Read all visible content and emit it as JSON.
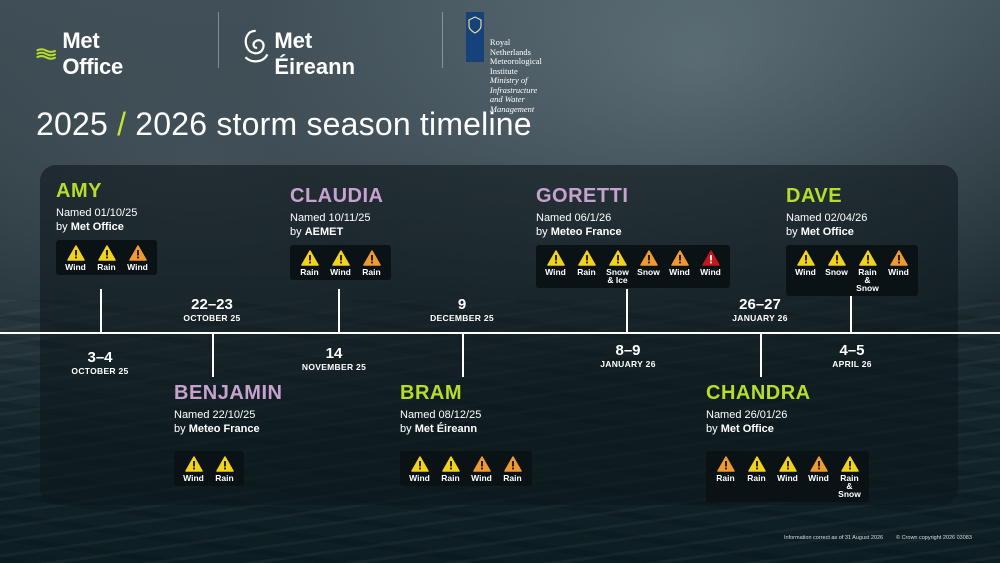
{
  "logos": {
    "met_office": "Met Office",
    "met_eireann": "Met Éireann",
    "knmi": [
      "Royal Netherlands",
      "Meteorological Institute",
      "Ministry of Infrastructure",
      "and Water Management"
    ]
  },
  "title": {
    "years_a": "2025",
    "slash": "/",
    "years_b": "2026 storm season timeline"
  },
  "colors": {
    "accent_green": "#b7dc2a",
    "accent_purple": "#c8a2cf",
    "yellow_warning": "#f2d21b",
    "amber_warning": "#ef9a2e",
    "red_warning": "#c4161c"
  },
  "storms": [
    {
      "name": "AMY",
      "named": "Named 01/10/25",
      "by_prefix": "by",
      "agency": "Met Office",
      "warnings": [
        {
          "level": "yellow",
          "label": "Wind"
        },
        {
          "level": "yellow",
          "label": "Rain"
        },
        {
          "level": "amber",
          "label": "Wind"
        }
      ],
      "date_big": "3–4",
      "date_small": "OCTOBER 25"
    },
    {
      "name": "BENJAMIN",
      "named": "Named 22/10/25",
      "by_prefix": "by",
      "agency": "Meteo France",
      "warnings": [
        {
          "level": "yellow",
          "label": "Wind"
        },
        {
          "level": "yellow",
          "label": "Rain"
        }
      ],
      "date_big": "22–23",
      "date_small": "OCTOBER 25"
    },
    {
      "name": "CLAUDIA",
      "named": "Named 10/11/25",
      "by_prefix": "by",
      "agency": "AEMET",
      "warnings": [
        {
          "level": "yellow",
          "label": "Rain"
        },
        {
          "level": "yellow",
          "label": "Wind"
        },
        {
          "level": "amber",
          "label": "Rain"
        }
      ],
      "date_big": "14",
      "date_small": "NOVEMBER 25"
    },
    {
      "name": "BRAM",
      "named": "Named 08/12/25",
      "by_prefix": "by",
      "agency": "Met Éireann",
      "warnings": [
        {
          "level": "yellow",
          "label": "Wind"
        },
        {
          "level": "yellow",
          "label": "Rain"
        },
        {
          "level": "amber",
          "label": "Wind"
        },
        {
          "level": "amber",
          "label": "Rain"
        }
      ],
      "date_big": "9",
      "date_small": "DECEMBER 25"
    },
    {
      "name": "GORETTI",
      "named": "Named 06/1/26",
      "by_prefix": "by",
      "agency": "Meteo France",
      "warnings": [
        {
          "level": "yellow",
          "label": "Wind"
        },
        {
          "level": "yellow",
          "label": "Rain"
        },
        {
          "level": "yellow",
          "label": "Snow\n& Ice"
        },
        {
          "level": "amber",
          "label": "Snow"
        },
        {
          "level": "amber",
          "label": "Wind"
        },
        {
          "level": "red",
          "label": "Wind"
        }
      ],
      "date_big": "8–9",
      "date_small": "JANUARY 26"
    },
    {
      "name": "CHANDRA",
      "named": "Named 26/01/26",
      "by_prefix": "by",
      "agency": "Met Office",
      "warnings": [
        {
          "level": "amber",
          "label": "Rain"
        },
        {
          "level": "yellow",
          "label": "Rain"
        },
        {
          "level": "yellow",
          "label": "Wind"
        },
        {
          "level": "amber",
          "label": "Wind"
        },
        {
          "level": "yellow",
          "label": "Rain\n& Snow"
        }
      ],
      "date_big": "26–27",
      "date_small": "JANUARY 26"
    },
    {
      "name": "DAVE",
      "named": "Named 02/04/26",
      "by_prefix": "by",
      "agency": "Met Office",
      "warnings": [
        {
          "level": "yellow",
          "label": "Wind"
        },
        {
          "level": "yellow",
          "label": "Snow"
        },
        {
          "level": "yellow",
          "label": "Rain\n& Snow"
        },
        {
          "level": "amber",
          "label": "Wind"
        }
      ],
      "date_big": "4–5",
      "date_small": "APRIL 26"
    }
  ],
  "footer": {
    "info": "Information correct as of 31 August 2026",
    "copyright": "© Crown copyright 2026  03083"
  }
}
